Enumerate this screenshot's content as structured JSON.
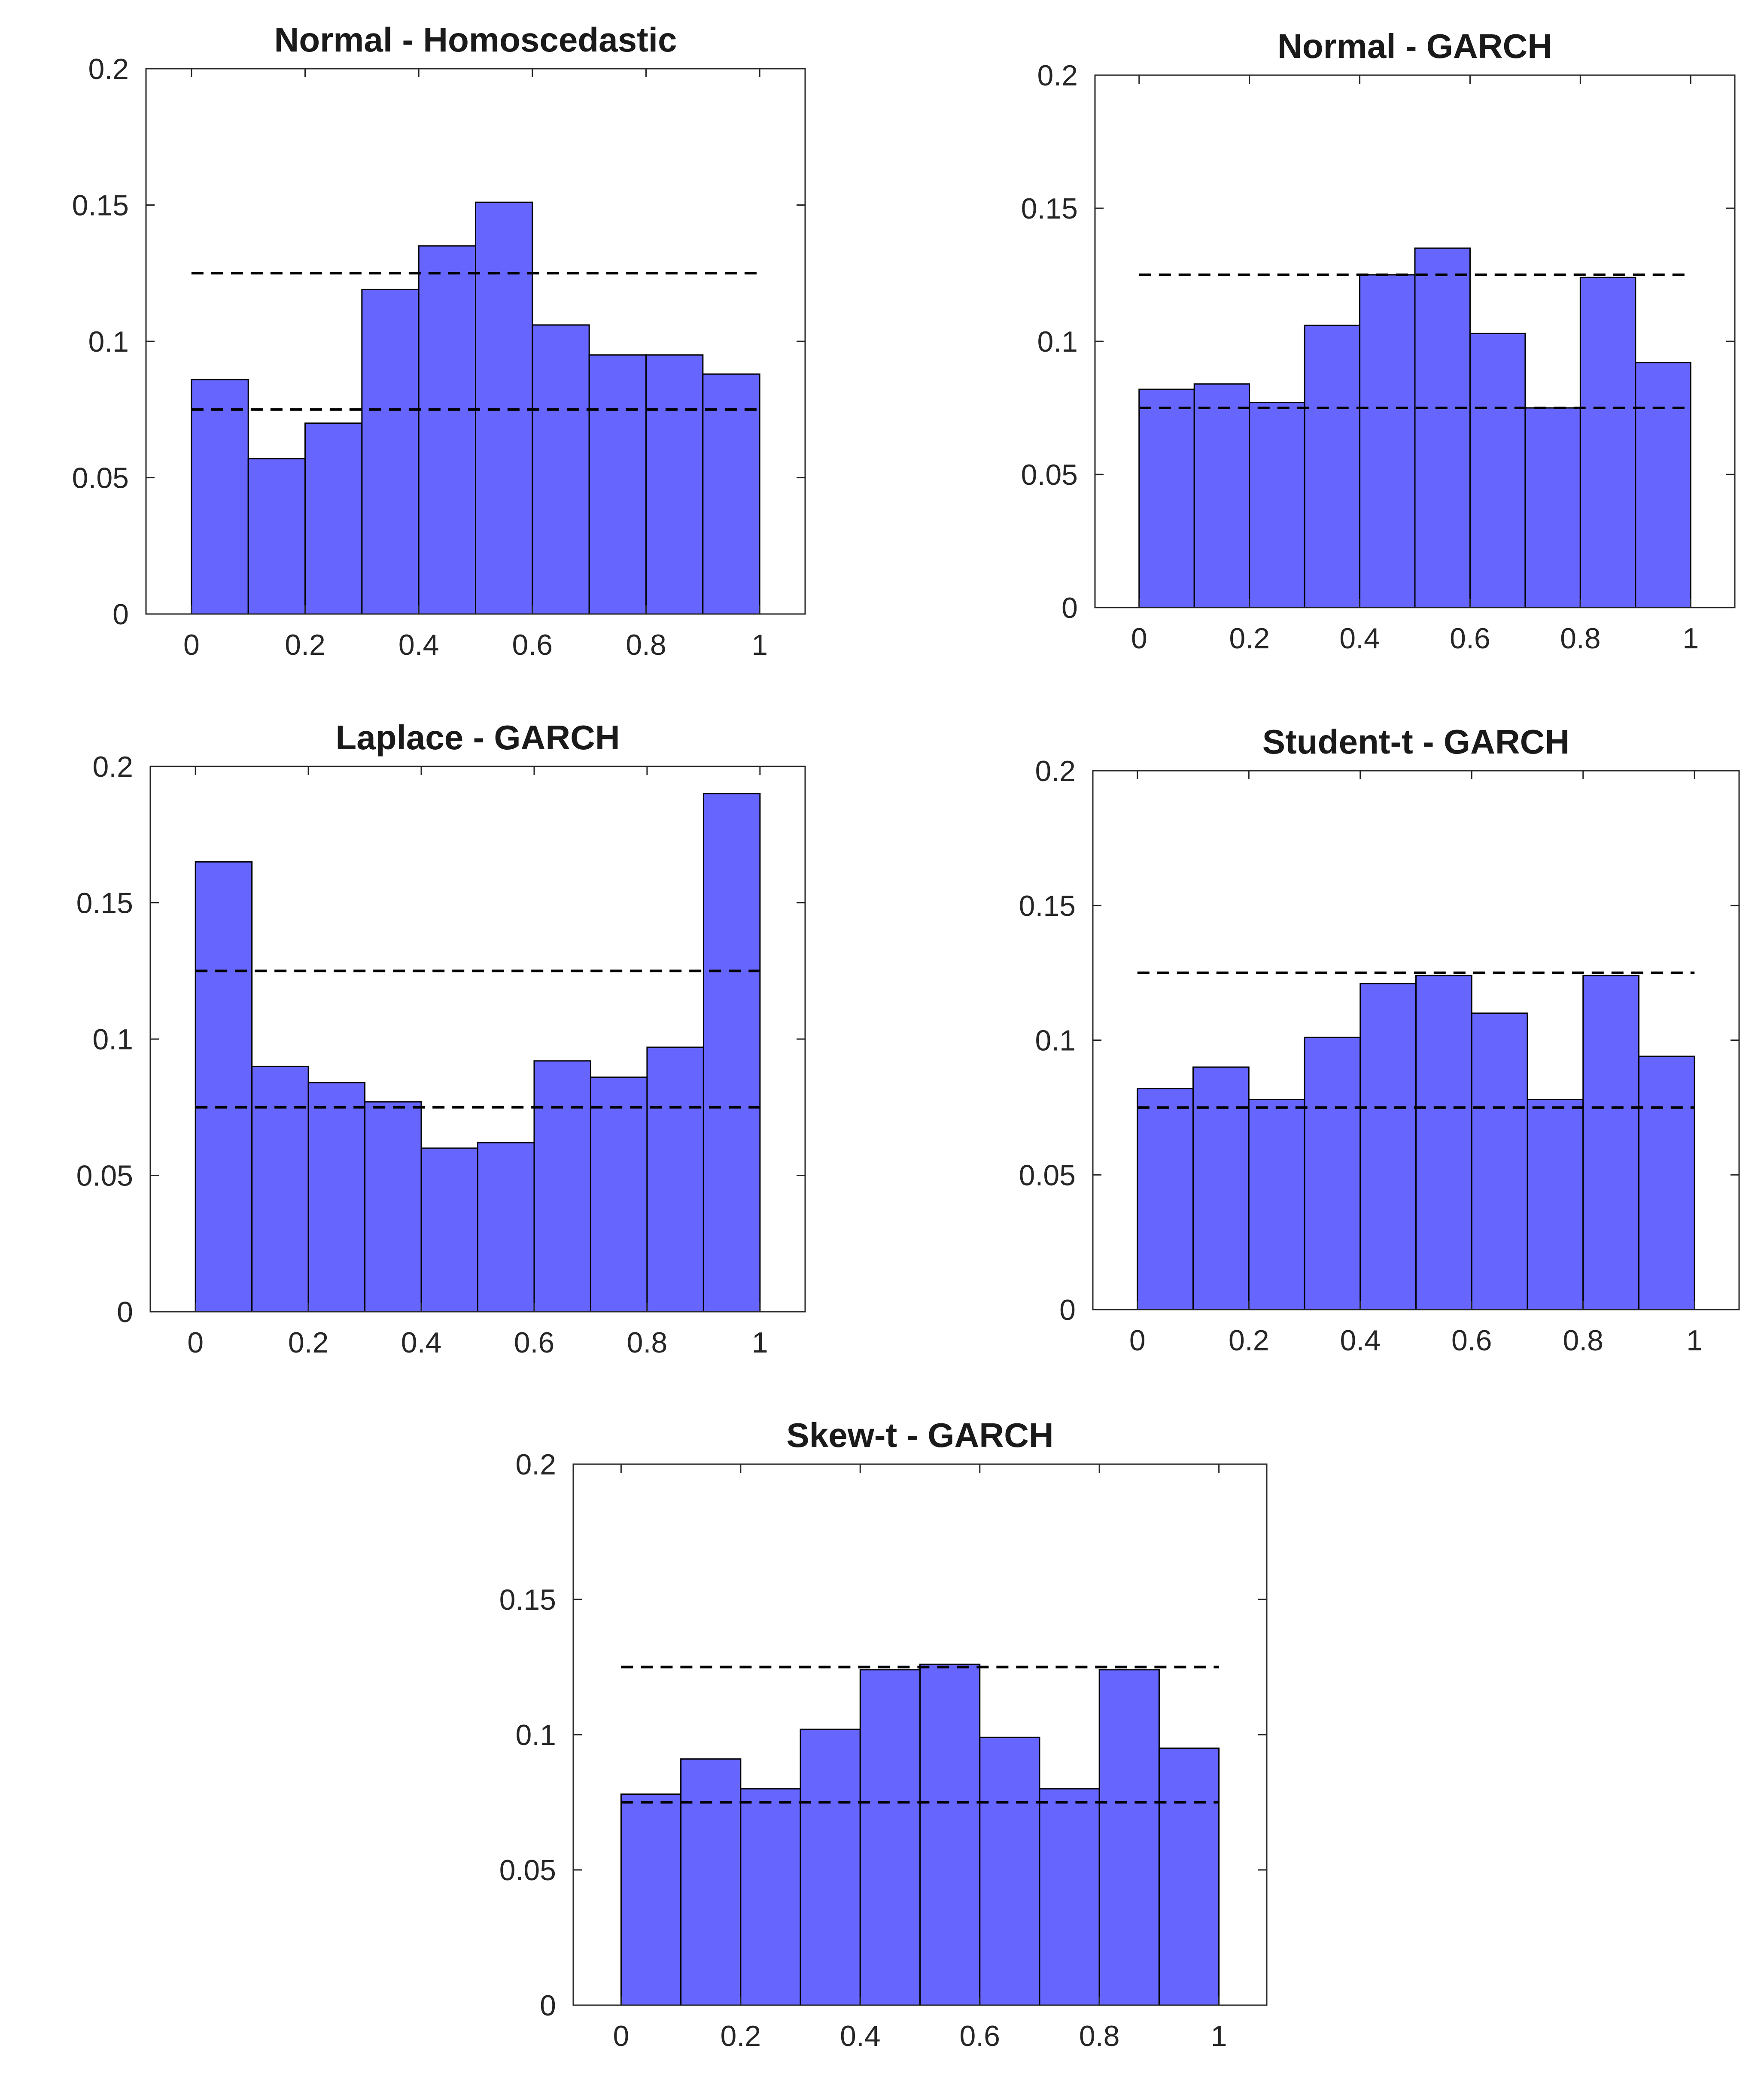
{
  "colors": {
    "bar": "#6666ff",
    "bar_edge": "#000000",
    "axis": "#262626",
    "reference_line": "#000000"
  },
  "chart_data": [
    {
      "type": "bar",
      "title": "Normal - Homoscedastic",
      "bin_edges": [
        0,
        0.1,
        0.2,
        0.3,
        0.4,
        0.5,
        0.6,
        0.7,
        0.8,
        0.9,
        1.0
      ],
      "values": [
        0.086,
        0.057,
        0.07,
        0.119,
        0.135,
        0.151,
        0.106,
        0.095,
        0.095,
        0.088
      ],
      "reference_lines": [
        0.125,
        0.075
      ],
      "xlim": [
        -0.08,
        1.08
      ],
      "ylim": [
        0,
        0.2
      ],
      "xticks": [
        0,
        0.2,
        0.4,
        0.6,
        0.8,
        1
      ],
      "xtick_labels": [
        "0",
        "0.2",
        "0.4",
        "0.6",
        "0.8",
        "1"
      ],
      "yticks": [
        0,
        0.05,
        0.1,
        0.15,
        0.2
      ],
      "ytick_labels": [
        "0",
        "0.05",
        "0.1",
        "0.15",
        "0.2"
      ],
      "xlabel": "",
      "ylabel": ""
    },
    {
      "type": "bar",
      "title": "Normal - GARCH",
      "bin_edges": [
        0,
        0.1,
        0.2,
        0.3,
        0.4,
        0.5,
        0.6,
        0.7,
        0.8,
        0.9,
        1.0
      ],
      "values": [
        0.082,
        0.084,
        0.077,
        0.106,
        0.125,
        0.135,
        0.103,
        0.075,
        0.124,
        0.092
      ],
      "reference_lines": [
        0.125,
        0.075
      ],
      "xlim": [
        -0.08,
        1.08
      ],
      "ylim": [
        0,
        0.2
      ],
      "xticks": [
        0,
        0.2,
        0.4,
        0.6,
        0.8,
        1
      ],
      "xtick_labels": [
        "0",
        "0.2",
        "0.4",
        "0.6",
        "0.8",
        "1"
      ],
      "yticks": [
        0,
        0.05,
        0.1,
        0.15,
        0.2
      ],
      "ytick_labels": [
        "0",
        "0.05",
        "0.1",
        "0.15",
        "0.2"
      ],
      "xlabel": "",
      "ylabel": ""
    },
    {
      "type": "bar",
      "title": "Laplace - GARCH",
      "bin_edges": [
        0,
        0.1,
        0.2,
        0.3,
        0.4,
        0.5,
        0.6,
        0.7,
        0.8,
        0.9,
        1.0
      ],
      "values": [
        0.165,
        0.09,
        0.084,
        0.077,
        0.06,
        0.062,
        0.092,
        0.086,
        0.097,
        0.19
      ],
      "reference_lines": [
        0.125,
        0.075
      ],
      "xlim": [
        -0.08,
        1.08
      ],
      "ylim": [
        0,
        0.2
      ],
      "xticks": [
        0,
        0.2,
        0.4,
        0.6,
        0.8,
        1
      ],
      "xtick_labels": [
        "0",
        "0.2",
        "0.4",
        "0.6",
        "0.8",
        "1"
      ],
      "yticks": [
        0,
        0.05,
        0.1,
        0.15,
        0.2
      ],
      "ytick_labels": [
        "0",
        "0.05",
        "0.1",
        "0.15",
        "0.2"
      ],
      "xlabel": "",
      "ylabel": ""
    },
    {
      "type": "bar",
      "title": "Student-t - GARCH",
      "bin_edges": [
        0,
        0.1,
        0.2,
        0.3,
        0.4,
        0.5,
        0.6,
        0.7,
        0.8,
        0.9,
        1.0
      ],
      "values": [
        0.082,
        0.09,
        0.078,
        0.101,
        0.121,
        0.124,
        0.11,
        0.078,
        0.124,
        0.094
      ],
      "reference_lines": [
        0.125,
        0.075
      ],
      "xlim": [
        -0.08,
        1.08
      ],
      "ylim": [
        0,
        0.2
      ],
      "xticks": [
        0,
        0.2,
        0.4,
        0.6,
        0.8,
        1
      ],
      "xtick_labels": [
        "0",
        "0.2",
        "0.4",
        "0.6",
        "0.8",
        "1"
      ],
      "yticks": [
        0,
        0.05,
        0.1,
        0.15,
        0.2
      ],
      "ytick_labels": [
        "0",
        "0.05",
        "0.1",
        "0.15",
        "0.2"
      ],
      "xlabel": "",
      "ylabel": ""
    },
    {
      "type": "bar",
      "title": "Skew-t - GARCH",
      "bin_edges": [
        0,
        0.1,
        0.2,
        0.3,
        0.4,
        0.5,
        0.6,
        0.7,
        0.8,
        0.9,
        1.0
      ],
      "values": [
        0.078,
        0.091,
        0.08,
        0.102,
        0.124,
        0.126,
        0.099,
        0.08,
        0.124,
        0.095
      ],
      "reference_lines": [
        0.125,
        0.075
      ],
      "xlim": [
        -0.08,
        1.08
      ],
      "ylim": [
        0,
        0.2
      ],
      "xticks": [
        0,
        0.2,
        0.4,
        0.6,
        0.8,
        1
      ],
      "xtick_labels": [
        "0",
        "0.2",
        "0.4",
        "0.6",
        "0.8",
        "1"
      ],
      "yticks": [
        0,
        0.05,
        0.1,
        0.15,
        0.2
      ],
      "ytick_labels": [
        "0",
        "0.05",
        "0.1",
        "0.15",
        "0.2"
      ],
      "xlabel": "",
      "ylabel": ""
    }
  ]
}
